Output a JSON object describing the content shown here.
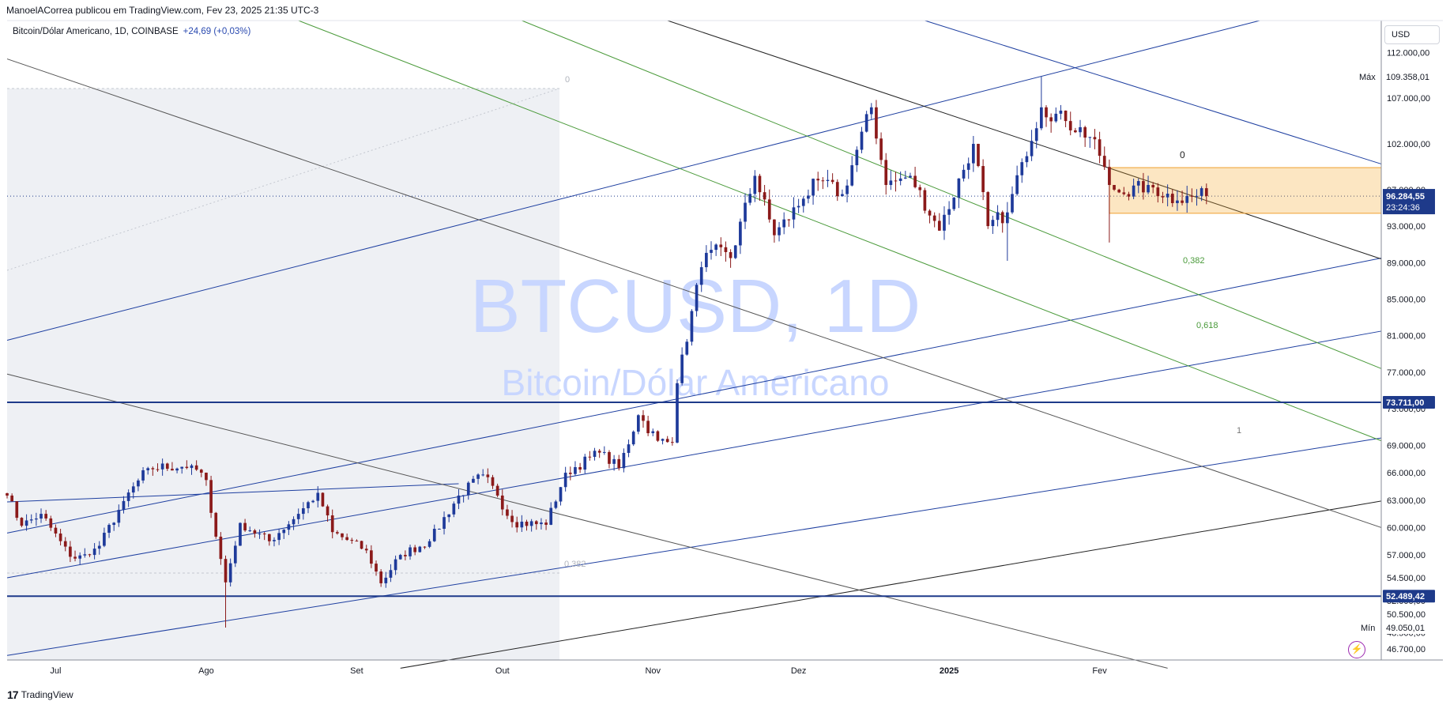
{
  "header": {
    "published_by": "ManoelACorrea publicou em TradingView.com, Fev 23, 2025 21:35 UTC-3"
  },
  "legend": {
    "symbol": "Bitcoin/Dólar Americano, 1D, COINBASE",
    "change": "+24,69 (+0,03%)"
  },
  "currency_button": "USD",
  "footer": {
    "brand": "TradingView",
    "logo_glyph": "17"
  },
  "chart_data": {
    "type": "candlestick",
    "symbol": "BTCUSD",
    "interval": "1D",
    "exchange": "COINBASE",
    "watermark": {
      "line1": "BTCUSD, 1D",
      "line2": "Bitcoin/Dólar Americano"
    },
    "x_labels": [
      "Jul",
      "Ago",
      "Set",
      "Out",
      "Nov",
      "Dez",
      "2025",
      "Fev"
    ],
    "y_ticks": [
      "112.000,00",
      "107.000,00",
      "102.000,00",
      "97.000,00",
      "93.000,00",
      "89.000,00",
      "85.000,00",
      "81.000,00",
      "77.000,00",
      "73.000,00",
      "69.000,00",
      "66.000,00",
      "63.000,00",
      "60.000,00",
      "57.000,00",
      "54.500,00",
      "52.000,00",
      "50.500,00",
      "48.500,00",
      "46.700,00"
    ],
    "y_tick_values": [
      112000,
      107000,
      102000,
      97000,
      93000,
      89000,
      85000,
      81000,
      77000,
      73000,
      69000,
      66000,
      63000,
      60000,
      57000,
      54500,
      52000,
      50500,
      48500,
      46700
    ],
    "price_labels": {
      "max": {
        "label": "Máx",
        "value": "109.358,01",
        "num": 109358.01
      },
      "last": {
        "value": "96.284,55",
        "countdown": "23:24:36",
        "num": 96284.55
      },
      "level1": {
        "value": "73.711,00",
        "num": 73711
      },
      "level2": {
        "value": "52.489,42",
        "num": 52489.42
      },
      "min": {
        "label": "Mín",
        "value": "49.050,01",
        "num": 49050.01
      }
    },
    "fib_labels": {
      "left_top": "0",
      "left_bottom": "0,382",
      "right_zero": "0",
      "right_382": "0,382",
      "right_618": "0,618",
      "right_one": "1"
    },
    "keyframes": [
      [
        "2024-06-21",
        63500
      ],
      [
        "2024-06-24",
        60200
      ],
      [
        "2024-06-28",
        61500
      ],
      [
        "2024-07-04",
        56800
      ],
      [
        "2024-07-05",
        56600
      ],
      [
        "2024-07-08",
        57000
      ],
      [
        "2024-07-10",
        58000
      ],
      [
        "2024-07-15",
        62900
      ],
      [
        "2024-07-20",
        66500
      ],
      [
        "2024-07-29",
        66800
      ],
      [
        "2024-08-01",
        65200
      ],
      [
        "2024-08-03",
        59000
      ],
      [
        "2024-08-05",
        54000
      ],
      [
        "2024-08-08",
        60500
      ],
      [
        "2024-08-14",
        58500
      ],
      [
        "2024-08-20",
        61500
      ],
      [
        "2024-08-24",
        63800
      ],
      [
        "2024-08-27",
        59500
      ],
      [
        "2024-09-03",
        57500
      ],
      [
        "2024-09-06",
        53900
      ],
      [
        "2024-09-10",
        57000
      ],
      [
        "2024-09-16",
        58500
      ],
      [
        "2024-09-22",
        63500
      ],
      [
        "2024-09-27",
        65800
      ],
      [
        "2024-09-30",
        63500
      ],
      [
        "2024-10-03",
        60600
      ],
      [
        "2024-10-10",
        60300
      ],
      [
        "2024-10-14",
        66000
      ],
      [
        "2024-10-21",
        68200
      ],
      [
        "2024-10-25",
        66500
      ],
      [
        "2024-10-29",
        72300
      ],
      [
        "2024-11-02",
        69500
      ],
      [
        "2024-11-05",
        69300
      ],
      [
        "2024-11-06",
        75800
      ],
      [
        "2024-11-11",
        88500
      ],
      [
        "2024-11-13",
        90400
      ],
      [
        "2024-11-17",
        89500
      ],
      [
        "2024-11-22",
        98500
      ],
      [
        "2024-11-26",
        92000
      ],
      [
        "2024-12-02",
        96000
      ],
      [
        "2024-12-05",
        98000
      ],
      [
        "2024-12-10",
        96500
      ],
      [
        "2024-12-16",
        106000
      ],
      [
        "2024-12-19",
        97500
      ],
      [
        "2024-12-24",
        98500
      ],
      [
        "2024-12-30",
        92500
      ],
      [
        "2025-01-06",
        102000
      ],
      [
        "2025-01-09",
        93000
      ],
      [
        "2025-01-13",
        94500
      ],
      [
        "2025-01-16",
        100000
      ],
      [
        "2025-01-20",
        106000
      ],
      [
        "2025-01-25",
        104500
      ],
      [
        "2025-01-31",
        102500
      ],
      [
        "2025-02-03",
        97500
      ],
      [
        "2025-02-06",
        96500
      ],
      [
        "2025-02-11",
        97500
      ],
      [
        "2025-02-17",
        95800
      ],
      [
        "2025-02-21",
        96300
      ],
      [
        "2025-02-23",
        96284
      ]
    ],
    "wicks": [
      [
        "2024-08-05",
        49050.01
      ],
      [
        "2025-01-20",
        109358.01
      ],
      [
        "2025-02-03",
        91200
      ],
      [
        "2025-01-13",
        89200
      ]
    ],
    "x_range": [
      "2024-06-21",
      "2025-03-31"
    ],
    "y_range": [
      45500,
      115500
    ],
    "horizontal_levels": [
      73711,
      52489.42
    ],
    "consolidation_box": {
      "from": "2025-02-03",
      "to": "2025-03-31",
      "top": 99400,
      "bottom": 94400
    },
    "trend_lines": [
      {
        "color": "#1e3fa0",
        "from": [
          "2024-06-21",
          80500
        ],
        "to": [
          "2025-03-06",
          115500
        ]
      },
      {
        "color": "#1e3fa0",
        "from": [
          "2024-06-21",
          59400
        ],
        "to": [
          "2025-03-31",
          89500
        ]
      },
      {
        "color": "#1e3fa0",
        "from": [
          "2024-06-21",
          54500
        ],
        "to": [
          "2025-03-31",
          81500
        ]
      },
      {
        "color": "#1e3fa0",
        "from": [
          "2024-06-21",
          46000
        ],
        "to": [
          "2025-03-31",
          69800
        ]
      },
      {
        "color": "#1e3fa0",
        "from": [
          "2024-12-27",
          115500
        ],
        "to": [
          "2025-03-31",
          99800
        ]
      },
      {
        "color": "#1e3fa0",
        "from": [
          "2024-06-21",
          62800
        ],
        "to": [
          "2024-09-22",
          64800
        ]
      },
      {
        "color": "#4a9a3a",
        "from": [
          "2024-10-05",
          115500
        ],
        "to": [
          "2025-03-31",
          77400
        ]
      },
      {
        "color": "#4a9a3a",
        "from": [
          "2024-08-20",
          115500
        ],
        "to": [
          "2025-03-31",
          69500
        ]
      },
      {
        "color": "#222222",
        "from": [
          "2024-11-04",
          115500
        ],
        "to": [
          "2025-03-31",
          89400
        ]
      },
      {
        "color": "#222222",
        "from": [
          "2024-09-10",
          44600
        ],
        "to": [
          "2025-03-31",
          62900
        ]
      },
      {
        "color": "#555555",
        "from": [
          "2024-06-21",
          111300
        ],
        "to": [
          "2025-03-31",
          60000
        ]
      },
      {
        "color": "#555555",
        "from": [
          "2024-06-21",
          76800
        ],
        "to": [
          "2025-02-15",
          44600
        ]
      }
    ]
  }
}
